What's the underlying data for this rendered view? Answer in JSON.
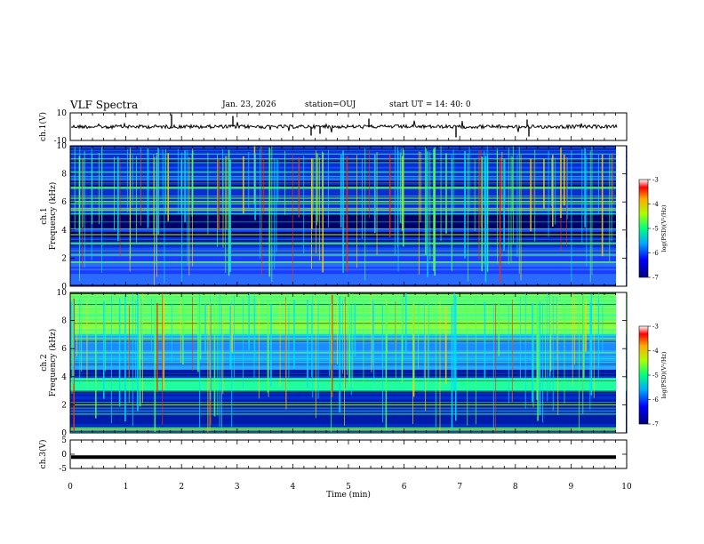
{
  "header": {
    "title": "VLF Spectra",
    "date": "Jan. 23, 2026",
    "station": "station=OUJ",
    "start": "start  UT =   14: 40: 0"
  },
  "colors": {
    "line": "#000000",
    "frame": "#000000"
  },
  "chart_data": [
    {
      "type": "line",
      "id": "ch1",
      "ylabel": "ch.1(V)",
      "ylim": [
        -10,
        10
      ],
      "yticks": [
        10,
        -10
      ],
      "xlim": [
        0,
        10
      ],
      "baseline": 0,
      "note": "noisy waveform with sparse spikes"
    },
    {
      "type": "heatmap",
      "id": "spec1",
      "ylabel_top": "ch.1",
      "ylabel": "Frequency (kHz)",
      "ylim": [
        0,
        10
      ],
      "yticks": [
        "0",
        "2",
        "4",
        "6",
        "8",
        "10"
      ],
      "xlim": [
        0,
        10
      ],
      "colorbar": {
        "label": "log(PSD)(V²/Hz)",
        "range": [
          -7,
          -3
        ],
        "ticks": [
          "-3",
          "-4",
          "-5",
          "-6",
          "-7"
        ]
      }
    },
    {
      "type": "heatmap",
      "id": "spec2",
      "ylabel_top": "ch.2",
      "ylabel": "Frequency (kHz)",
      "ylim": [
        0,
        10
      ],
      "yticks": [
        "0",
        "2",
        "4",
        "6",
        "8",
        "10"
      ],
      "xlim": [
        0,
        10
      ],
      "colorbar": {
        "label": "log(PSD)(V²/Hz)",
        "range": [
          -7,
          -3
        ],
        "ticks": [
          "-3",
          "-4",
          "-5",
          "-6",
          "-7"
        ]
      }
    },
    {
      "type": "line",
      "id": "ch3",
      "ylabel": "ch.3(V)",
      "ylim": [
        -5,
        5
      ],
      "yticks": [
        5,
        0,
        -5
      ],
      "xlim": [
        0,
        10
      ],
      "baseline": -1
    }
  ],
  "xaxis": {
    "label": "Time (min)",
    "ticks": [
      "0",
      "1",
      "2",
      "3",
      "4",
      "5",
      "6",
      "7",
      "8",
      "9",
      "10"
    ]
  }
}
